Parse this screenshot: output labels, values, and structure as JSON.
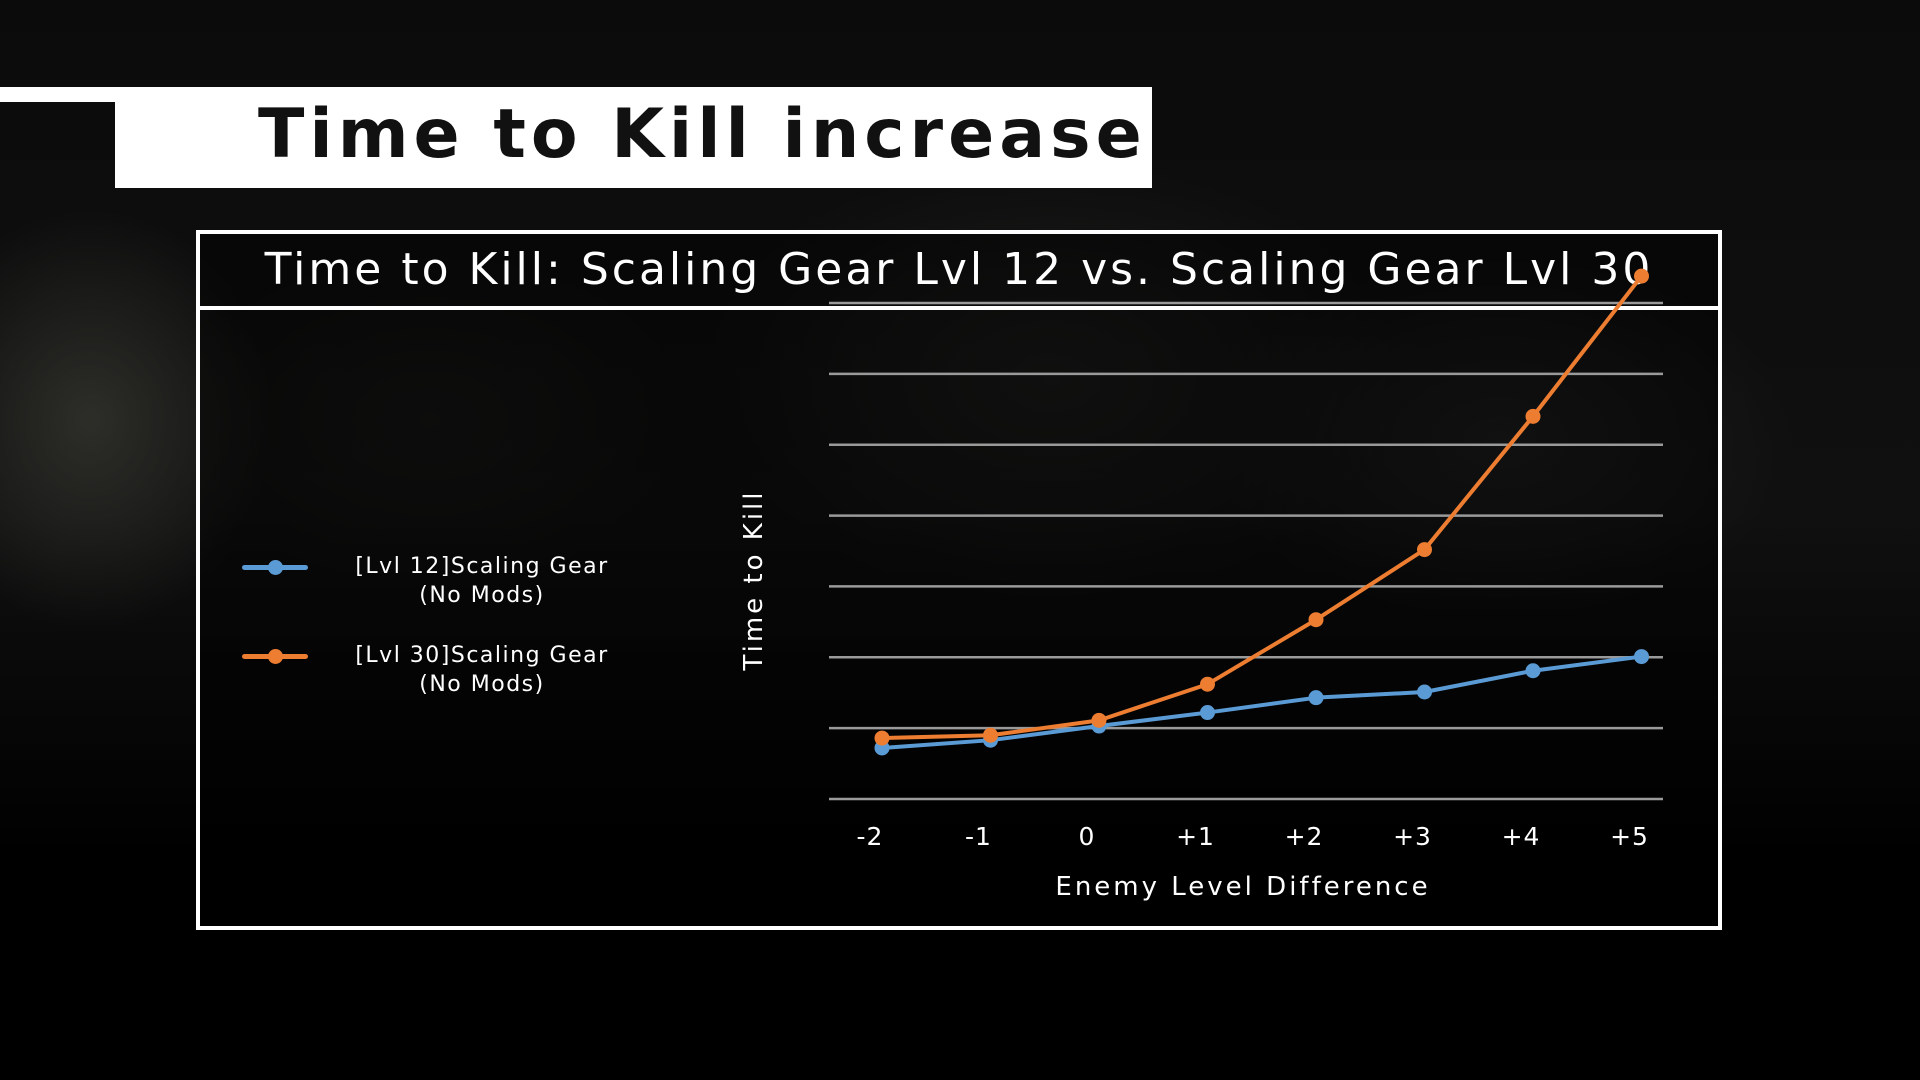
{
  "header": {
    "title": "Time to Kill increase"
  },
  "chart_data": {
    "type": "line",
    "title": "Time to Kill: Scaling Gear Lvl 12 vs. Scaling Gear Lvl 30",
    "xlabel": "Enemy Level Difference",
    "ylabel": "Time to Kill",
    "categories": [
      "-2",
      "-1",
      "0",
      "+1",
      "+2",
      "+3",
      "+4",
      "+5"
    ],
    "ylim": [
      0,
      7
    ],
    "y_tick_labels_shown": false,
    "grid": "horizontal",
    "legend_position": "left",
    "series": [
      {
        "name": "[Lvl 12]Scaling Gear (No Mods)",
        "name_lines": [
          "[Lvl 12]Scaling Gear",
          "(No Mods)"
        ],
        "color": "#5b9bd5",
        "values": [
          0.72,
          0.83,
          1.03,
          1.22,
          1.43,
          1.51,
          1.81,
          2.01
        ]
      },
      {
        "name": "[Lvl 30]Scaling Gear (No Mods)",
        "name_lines": [
          "[Lvl 30]Scaling Gear",
          "(No Mods)"
        ],
        "color": "#ed7d31",
        "values": [
          0.86,
          0.9,
          1.11,
          1.62,
          2.53,
          3.52,
          5.4,
          7.38
        ]
      }
    ]
  }
}
